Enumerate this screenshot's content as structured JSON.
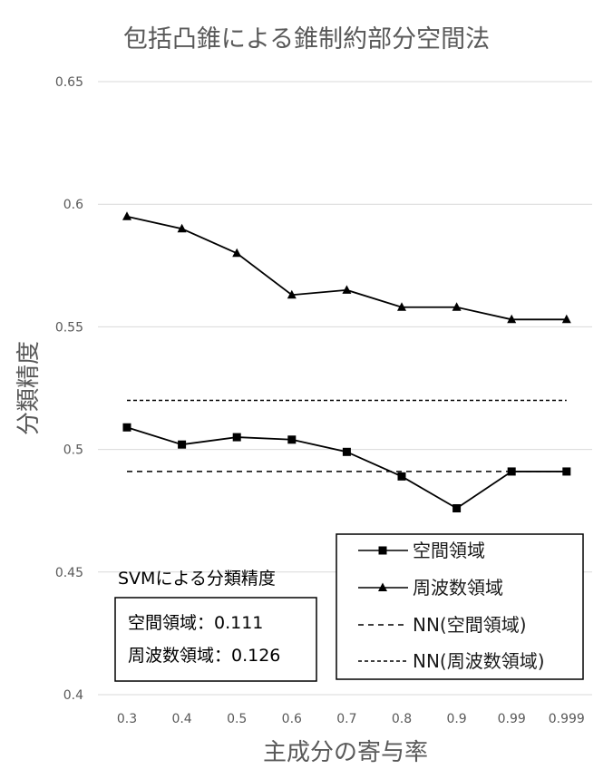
{
  "chart_data": {
    "type": "line",
    "title": "包括凸錐による錐制約部分空間法",
    "xlabel": "主成分の寄与率",
    "ylabel": "分類精度",
    "categories": [
      "0.3",
      "0.4",
      "0.5",
      "0.6",
      "0.7",
      "0.8",
      "0.9",
      "0.99",
      "0.999"
    ],
    "y_ticks": [
      "0.4",
      "0.45",
      "0.5",
      "0.55",
      "0.6",
      "0.65"
    ],
    "ylim": [
      0.4,
      0.65
    ],
    "grid": true,
    "legend_position": "bottom-right",
    "series": [
      {
        "name": "空間領域",
        "marker": "square",
        "style": "solid",
        "values": [
          0.509,
          0.502,
          0.505,
          0.504,
          0.499,
          0.489,
          0.476,
          0.491,
          0.491
        ]
      },
      {
        "name": "周波数領域",
        "marker": "triangle",
        "style": "solid",
        "values": [
          0.595,
          0.59,
          0.58,
          0.563,
          0.565,
          0.558,
          0.558,
          0.553,
          0.553
        ]
      },
      {
        "name": "NN(空間領域)",
        "marker": "none",
        "style": "dashed",
        "values": [
          0.491,
          0.491,
          0.491,
          0.491,
          0.491,
          0.491,
          0.491,
          0.491,
          0.491
        ]
      },
      {
        "name": "NN(周波数領域)",
        "marker": "none",
        "style": "dotted",
        "values": [
          0.52,
          0.52,
          0.52,
          0.52,
          0.52,
          0.52,
          0.52,
          0.52,
          0.52
        ]
      }
    ],
    "annotation": {
      "heading": "SVMによる分類精度",
      "lines": [
        "空間領域：0.111",
        "周波数領域：0.126"
      ]
    }
  }
}
